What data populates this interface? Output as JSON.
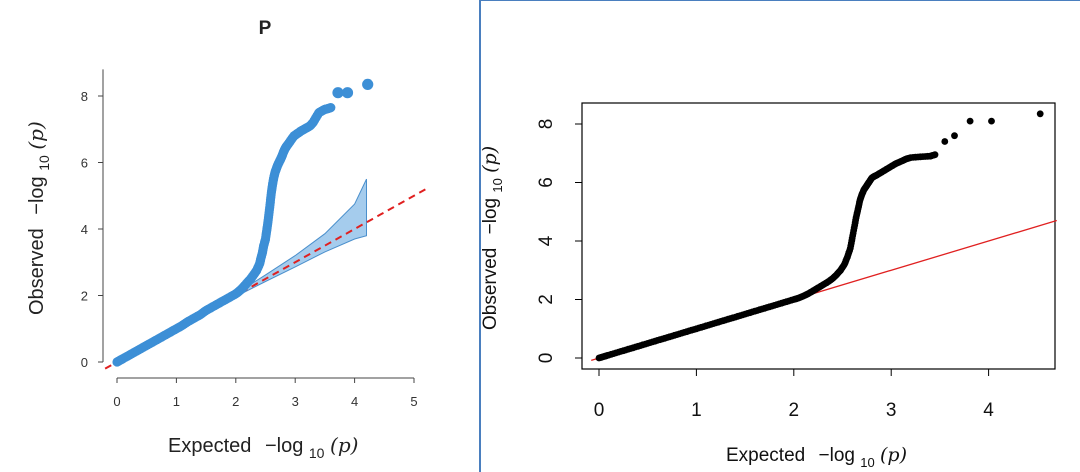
{
  "chart_data": [
    {
      "type": "scatter",
      "panel": "left",
      "title": "P",
      "xlabel_prefix": "Expected",
      "ylabel_prefix": "Observed",
      "label_math": "−log",
      "label_sub": "10",
      "label_arg": "(p)",
      "xlim": [
        0,
        5
      ],
      "ylim": [
        0,
        9
      ],
      "x_ticks": [
        0,
        1,
        2,
        3,
        4,
        5
      ],
      "y_ticks": [
        0,
        2,
        4,
        6,
        8
      ],
      "point_color": "#3d8fd6",
      "reference_line": {
        "slope": 1,
        "intercept": 0,
        "style": "dashed",
        "color": "#e02020"
      },
      "confidence_band": {
        "color": "#7fb7e6",
        "x": [
          2.0,
          2.5,
          3.0,
          3.5,
          4.0,
          4.2
        ],
        "lower": [
          1.97,
          2.42,
          2.86,
          3.31,
          3.7,
          3.8
        ],
        "upper": [
          2.05,
          2.62,
          3.2,
          3.86,
          4.75,
          5.5
        ]
      },
      "series": [
        {
          "x": [
            0.0,
            0.05,
            0.1,
            0.2,
            0.3,
            0.4,
            0.5,
            0.6,
            0.7,
            0.8,
            0.9,
            1.0,
            1.1,
            1.2,
            1.3,
            1.4,
            1.5,
            1.6,
            1.7,
            1.8,
            1.9,
            2.0,
            2.05,
            2.1,
            2.15,
            2.2,
            2.25,
            2.3,
            2.35,
            2.4,
            2.42,
            2.45,
            2.47,
            2.5,
            2.52,
            2.54,
            2.56,
            2.58,
            2.6,
            2.62,
            2.64,
            2.66,
            2.68,
            2.7,
            2.72,
            2.74,
            2.76,
            2.78,
            2.8,
            2.82,
            2.84,
            2.86,
            2.9,
            2.94,
            2.98,
            3.02,
            3.06,
            3.1,
            3.15,
            3.2,
            3.25,
            3.3,
            3.35,
            3.4,
            3.45,
            3.5,
            3.55,
            3.6,
            3.72,
            3.88,
            4.22
          ],
          "y": [
            0.0,
            0.05,
            0.1,
            0.2,
            0.3,
            0.4,
            0.5,
            0.6,
            0.7,
            0.8,
            0.9,
            1.0,
            1.1,
            1.22,
            1.32,
            1.42,
            1.55,
            1.65,
            1.75,
            1.85,
            1.95,
            2.05,
            2.12,
            2.2,
            2.3,
            2.4,
            2.5,
            2.62,
            2.75,
            2.95,
            3.1,
            3.3,
            3.5,
            3.7,
            3.95,
            4.2,
            4.5,
            4.8,
            5.1,
            5.35,
            5.55,
            5.7,
            5.8,
            5.9,
            5.98,
            6.05,
            6.12,
            6.2,
            6.3,
            6.38,
            6.45,
            6.5,
            6.6,
            6.7,
            6.8,
            6.85,
            6.9,
            6.95,
            7.0,
            7.05,
            7.1,
            7.2,
            7.35,
            7.5,
            7.55,
            7.6,
            7.62,
            7.65,
            8.1,
            8.1,
            8.35
          ]
        }
      ]
    },
    {
      "type": "scatter",
      "panel": "right",
      "xlabel_prefix": "Expected",
      "ylabel_prefix": "Observed",
      "label_math": "−log",
      "label_sub": "10",
      "label_arg": "(p)",
      "xlim": [
        -0.08,
        4.7
      ],
      "ylim": [
        -0.35,
        8.75
      ],
      "x_ticks": [
        0,
        1,
        2,
        3,
        4
      ],
      "y_ticks": [
        0,
        2,
        4,
        6,
        8
      ],
      "point_color": "#000000",
      "reference_line": {
        "slope": 1,
        "intercept": 0,
        "style": "solid",
        "color": "#e02020"
      },
      "series": [
        {
          "x": [
            0.0,
            0.05,
            0.1,
            0.2,
            0.3,
            0.4,
            0.5,
            0.6,
            0.7,
            0.8,
            0.9,
            1.0,
            1.1,
            1.2,
            1.3,
            1.4,
            1.5,
            1.6,
            1.7,
            1.8,
            1.9,
            2.0,
            2.05,
            2.1,
            2.15,
            2.2,
            2.25,
            2.3,
            2.35,
            2.4,
            2.44,
            2.48,
            2.52,
            2.55,
            2.58,
            2.6,
            2.62,
            2.64,
            2.66,
            2.68,
            2.7,
            2.72,
            2.74,
            2.76,
            2.78,
            2.8,
            2.82,
            2.85,
            2.9,
            2.95,
            3.0,
            3.05,
            3.1,
            3.15,
            3.2,
            3.3,
            3.4,
            3.45,
            3.55,
            3.65,
            3.81,
            4.03,
            4.53
          ],
          "y": [
            0.0,
            0.05,
            0.1,
            0.2,
            0.3,
            0.4,
            0.5,
            0.6,
            0.7,
            0.8,
            0.9,
            1.0,
            1.1,
            1.2,
            1.3,
            1.4,
            1.5,
            1.6,
            1.7,
            1.8,
            1.9,
            2.0,
            2.05,
            2.12,
            2.2,
            2.3,
            2.4,
            2.5,
            2.6,
            2.72,
            2.85,
            3.0,
            3.2,
            3.45,
            3.75,
            4.1,
            4.45,
            4.8,
            5.1,
            5.4,
            5.6,
            5.75,
            5.85,
            5.95,
            6.05,
            6.15,
            6.2,
            6.25,
            6.35,
            6.45,
            6.55,
            6.65,
            6.72,
            6.8,
            6.85,
            6.88,
            6.9,
            6.95,
            7.4,
            7.6,
            8.1,
            8.1,
            8.35
          ]
        }
      ]
    }
  ]
}
